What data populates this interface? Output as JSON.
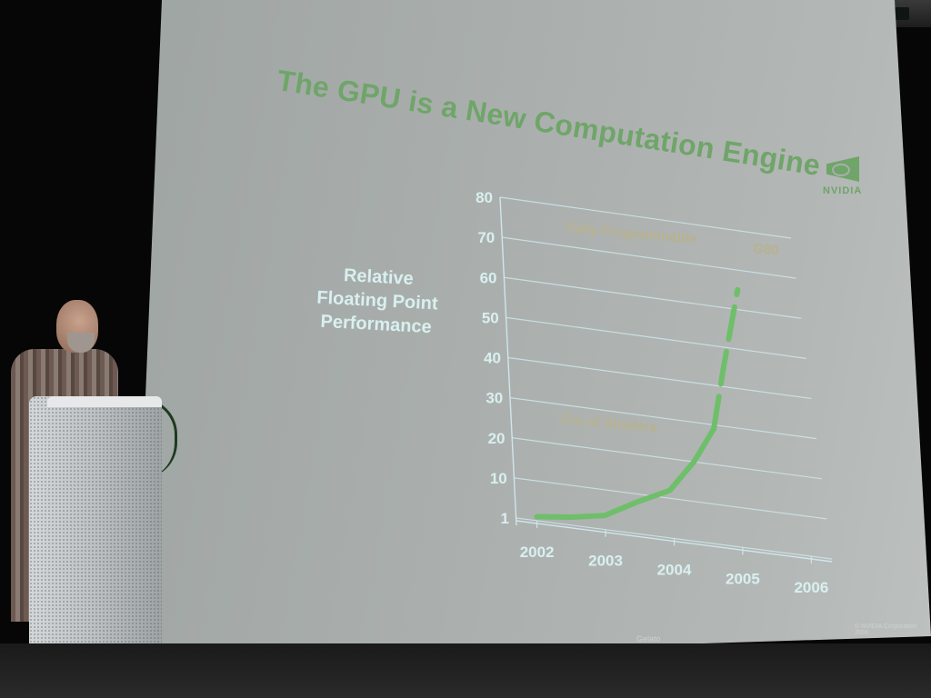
{
  "slide": {
    "title": "The GPU is a New Computation Engine",
    "logo_text": "NVIDIA",
    "y_axis_label": "Relative\nFloating Point\nPerformance",
    "footer": "Gelato",
    "copyright": "© NVIDIA Corporation 2006"
  },
  "chart_data": {
    "type": "line",
    "xlabel": "",
    "ylabel": "Relative Floating Point Performance",
    "x": [
      "2002",
      "2003",
      "2004",
      "2005",
      "2006"
    ],
    "y_ticks": [
      "1",
      "10",
      "20",
      "30",
      "40",
      "50",
      "60",
      "70",
      "80"
    ],
    "ylim": [
      0,
      80
    ],
    "grid": true,
    "series": [
      {
        "points": [
          [
            2002,
            1
          ],
          [
            2002.5,
            2
          ],
          [
            2003,
            3.5
          ],
          [
            2003.5,
            8
          ],
          [
            2004,
            12
          ],
          [
            2004.4,
            20
          ],
          [
            2004.75,
            29
          ],
          [
            2005,
            45
          ],
          [
            2005.35,
            65
          ]
        ]
      }
    ],
    "annotations": [
      "Fully Programmable",
      "G80",
      "Era of Shaders"
    ],
    "colors": {
      "line": "#6fbf6a",
      "grid": "#cfe6ea",
      "labels": "#d8f0ef",
      "annotation": "#b9b290",
      "title": "#6fa569"
    }
  }
}
